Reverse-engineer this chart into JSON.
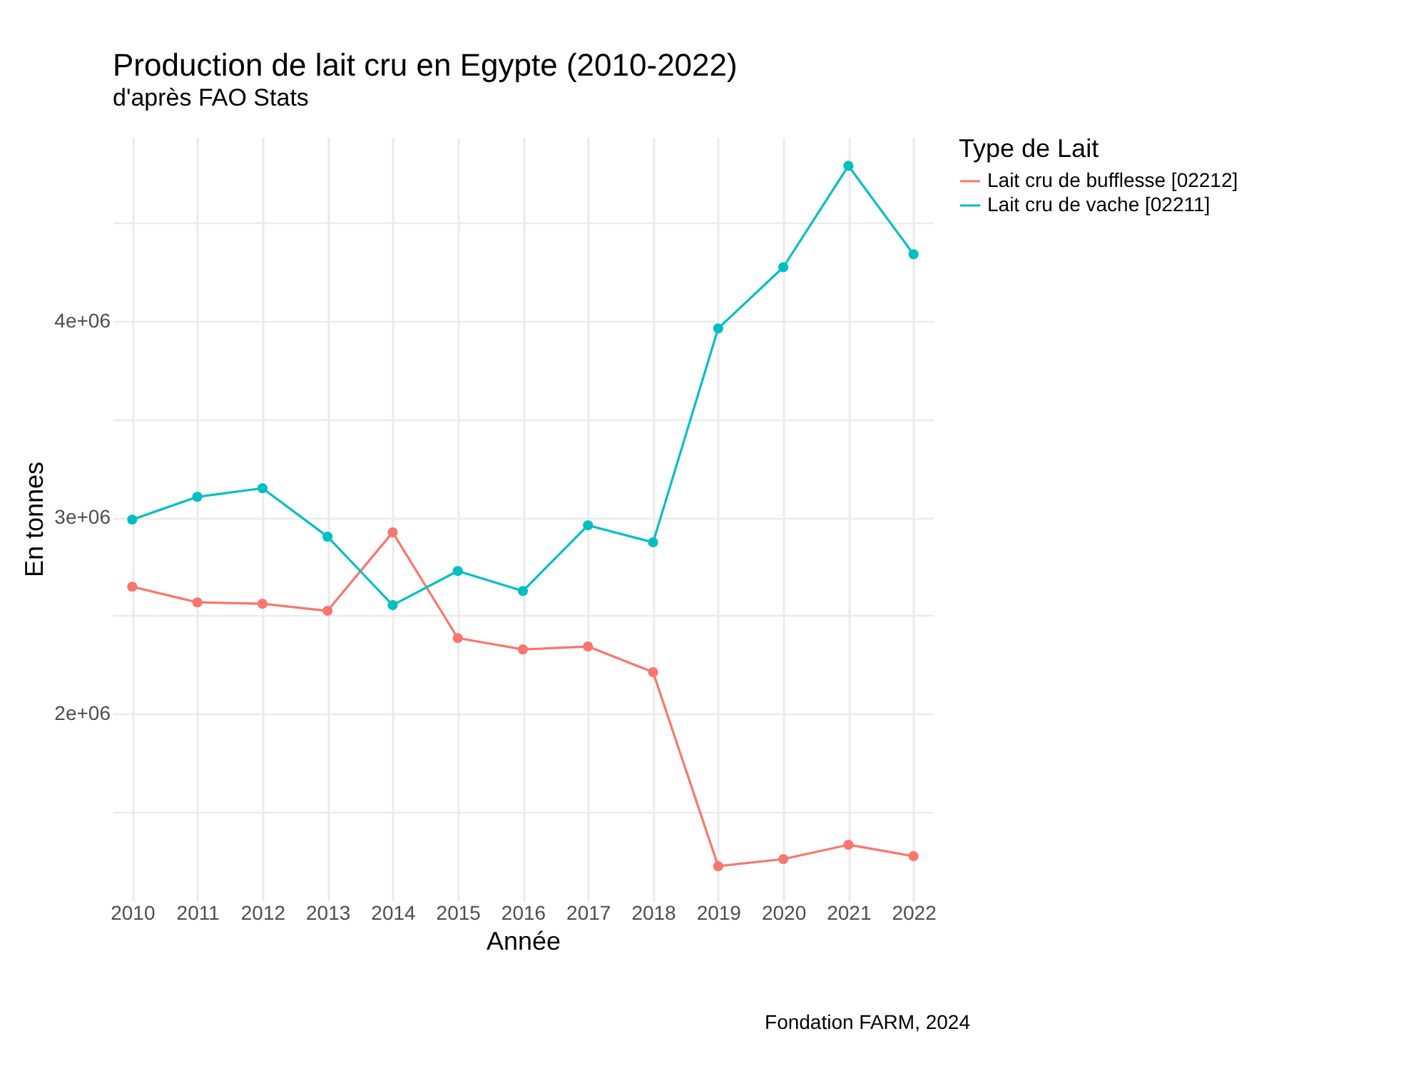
{
  "chart_data": {
    "type": "line",
    "title": "Production de lait cru en Egypte (2010-2022)",
    "subtitle": "d'après FAO Stats",
    "xlabel": "Année",
    "ylabel": "En tonnes",
    "legend_title": "Type de Lait",
    "categories": [
      "2010",
      "2011",
      "2012",
      "2013",
      "2014",
      "2015",
      "2016",
      "2017",
      "2018",
      "2019",
      "2020",
      "2021",
      "2022"
    ],
    "series": [
      {
        "name": "Lait cru de bufflesse [02212]",
        "color": "#f8766d",
        "values": [
          2647000,
          2567000,
          2560000,
          2524000,
          2924000,
          2385000,
          2327000,
          2342000,
          2211000,
          1222000,
          1258000,
          1331000,
          1273000
        ]
      },
      {
        "name": "Lait cru de vache [02211]",
        "color": "#00bfc4",
        "values": [
          2989000,
          3105000,
          3149000,
          2902000,
          2553000,
          2727000,
          2625000,
          2960000,
          2873000,
          3964000,
          4276000,
          4793000,
          4342000
        ]
      }
    ],
    "ylim": [
      1047000,
      4940000
    ],
    "yticks": [
      {
        "value": 1500000,
        "label": null
      },
      {
        "value": 2000000,
        "label": "2e+06"
      },
      {
        "value": 2500000,
        "label": null
      },
      {
        "value": 3000000,
        "label": "3e+06"
      },
      {
        "value": 3500000,
        "label": null
      },
      {
        "value": 4000000,
        "label": "4e+06"
      },
      {
        "value": 4500000,
        "label": null
      }
    ],
    "grid": true,
    "legend": "right",
    "marker": "circle",
    "line_style": "solid",
    "annotations": [
      "Fondation FARM, 2024"
    ]
  }
}
